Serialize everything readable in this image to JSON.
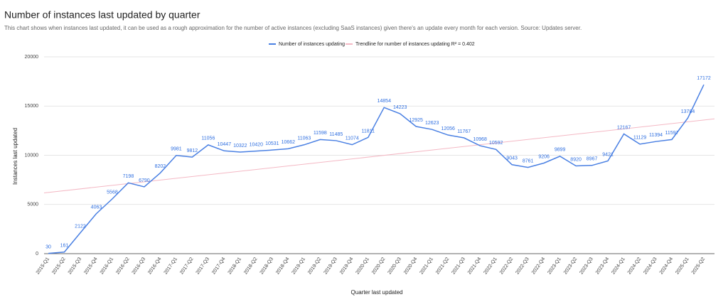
{
  "chart_data": {
    "type": "line",
    "title": "Number of instances last updated by quarter",
    "subtitle": "This chart shows when instances last updated, it can be used as a rough approximation for the number of active instances (excluding SaaS instances) given there's an update every month for each version. Source: Updates server.",
    "x_label": "Quarter last updated",
    "y_label": "Instances last updated",
    "categories": [
      "2015-Q1",
      "2015-Q2",
      "2015-Q3",
      "2015-Q4",
      "2016-Q1",
      "2016-Q2",
      "2016-Q3",
      "2016-Q4",
      "2017-Q1",
      "2017-Q2",
      "2017-Q3",
      "2017-Q4",
      "2018-Q1",
      "2018-Q2",
      "2018-Q3",
      "2018-Q4",
      "2019-Q1",
      "2019-Q2",
      "2019-Q3",
      "2019-Q4",
      "2020-Q1",
      "2020-Q2",
      "2020-Q3",
      "2020-Q4",
      "2021-Q1",
      "2021-Q2",
      "2021-Q3",
      "2021-Q4",
      "2022-Q1",
      "2022-Q2",
      "2022-Q3",
      "2022-Q4",
      "2023-Q1",
      "2023-Q2",
      "2023-Q3",
      "2023-Q4",
      "2024-Q1",
      "2024-Q2",
      "2024-Q3",
      "2024-Q4",
      "2025-Q1",
      "2025-Q2"
    ],
    "series": [
      {
        "name": "Number of instances updating",
        "color": "#4a80e3",
        "values": [
          30,
          161,
          2122,
          4063,
          5568,
          7198,
          6790,
          8202,
          9981,
          9812,
          11056,
          10447,
          10322,
          10420,
          10531,
          10662,
          11063,
          11598,
          11485,
          11074,
          11811,
          14854,
          14223,
          12925,
          12623,
          12056,
          11767,
          10968,
          10592,
          9043,
          8761,
          9206,
          9899,
          8920,
          8967,
          9421,
          12167,
          11129,
          11394,
          11597,
          13784,
          17172
        ]
      }
    ],
    "trendline": {
      "name": "Trendline for number of instances updating R² = 0.402",
      "color": "#f4b8c4"
    },
    "ylim": [
      0,
      20000
    ],
    "yticks": [
      0,
      5000,
      10000,
      15000,
      20000
    ],
    "grid": true,
    "legend": "top"
  }
}
